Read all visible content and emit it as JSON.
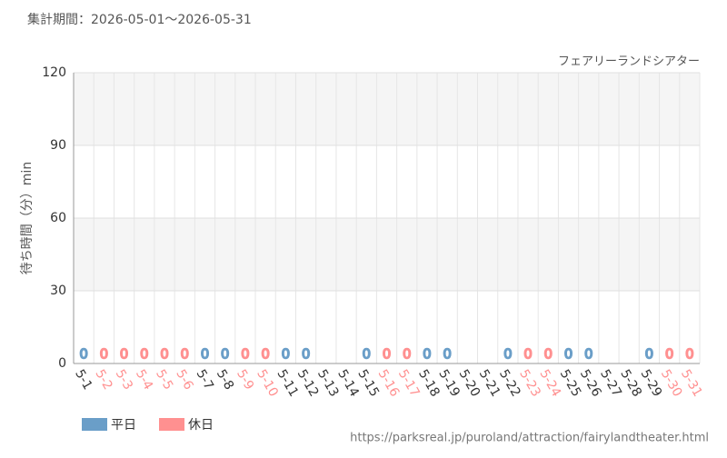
{
  "chart_data": {
    "type": "bar",
    "title": "集計期間：2026-05-01～2026-05-31",
    "subtitle": "フェアリーランドシアター",
    "y_label": "待ち時間（分）min",
    "source": "https://parksreal.jp/puroland/attraction/fairylandtheater.html",
    "categories": [
      "5-1",
      "5-2",
      "5-3",
      "5-4",
      "5-5",
      "5-6",
      "5-7",
      "5-8",
      "5-9",
      "5-10",
      "5-11",
      "5-12",
      "5-13",
      "5-14",
      "5-15",
      "5-16",
      "5-17",
      "5-18",
      "5-19",
      "5-20",
      "5-21",
      "5-22",
      "5-23",
      "5-24",
      "5-25",
      "5-26",
      "5-27",
      "5-28",
      "5-29",
      "5-30",
      "5-31"
    ],
    "series": [
      {
        "name": "平日",
        "color": "#6a9ec8",
        "values": [
          0,
          null,
          null,
          null,
          null,
          null,
          0,
          0,
          null,
          null,
          0,
          0,
          null,
          null,
          0,
          null,
          null,
          0,
          0,
          null,
          null,
          0,
          null,
          null,
          0,
          0,
          null,
          null,
          0,
          null,
          null
        ]
      },
      {
        "name": "休日",
        "color": "#ff9090",
        "values": [
          null,
          0,
          0,
          0,
          0,
          0,
          null,
          null,
          0,
          0,
          null,
          null,
          null,
          null,
          null,
          0,
          0,
          null,
          null,
          null,
          null,
          null,
          0,
          0,
          null,
          null,
          null,
          null,
          null,
          0,
          0
        ]
      }
    ],
    "ylim": [
      0,
      120
    ],
    "yticks": [
      0,
      30,
      60,
      90,
      120
    ],
    "grid": true
  }
}
